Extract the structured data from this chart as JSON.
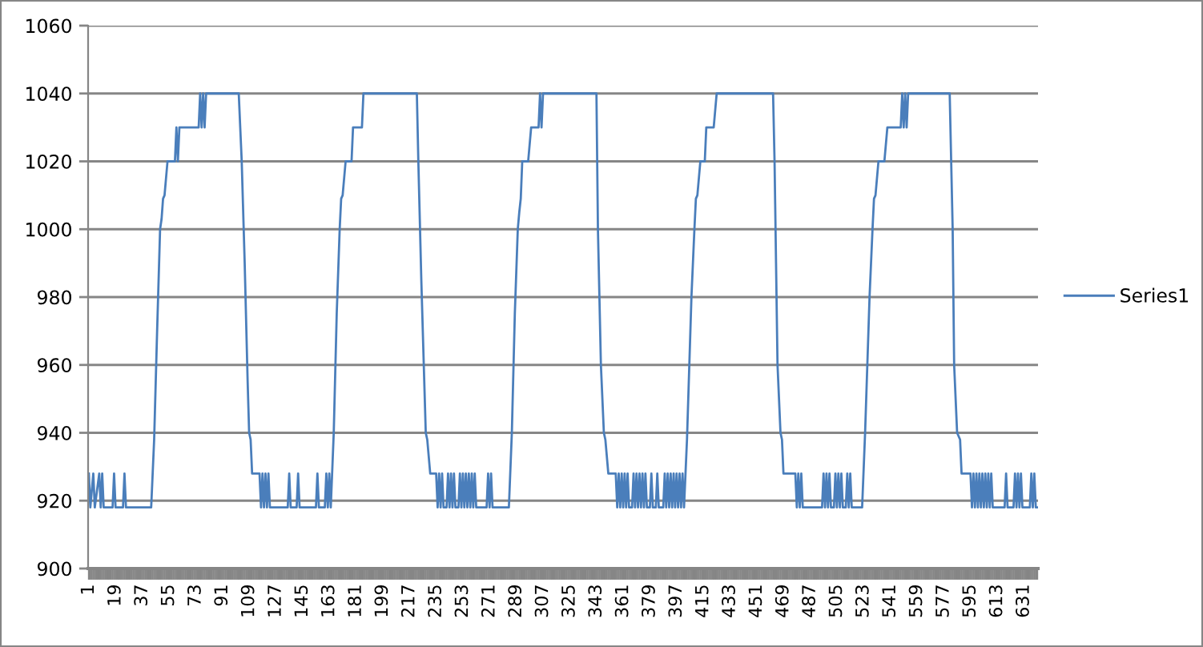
{
  "chart_data": {
    "type": "line",
    "series": [
      {
        "name": "Series1",
        "color": "#4a7ebb",
        "x": [
          1,
          2,
          4,
          5,
          8,
          9,
          10,
          11,
          17,
          18,
          19,
          24,
          25,
          26,
          43,
          45,
          47,
          49,
          50,
          51,
          52,
          54,
          59,
          60,
          61,
          62,
          75,
          76,
          77,
          78,
          79,
          80,
          102,
          104,
          106,
          108,
          109,
          110,
          111,
          116,
          117,
          118,
          119,
          120,
          121,
          122,
          123,
          135,
          136,
          137,
          141,
          142,
          143,
          154,
          155,
          156,
          160,
          161,
          162,
          163,
          164,
          166,
          168,
          170,
          171,
          172,
          174,
          178,
          179,
          185,
          186,
          222,
          223,
          225,
          228,
          229,
          231,
          235,
          236,
          237,
          238,
          239,
          240,
          242,
          243,
          244,
          245,
          246,
          247,
          248,
          250,
          251,
          252,
          253,
          254,
          255,
          256,
          257,
          258,
          259,
          260,
          261,
          262,
          269,
          270,
          271,
          272,
          273,
          284,
          286,
          288,
          290,
          291,
          292,
          293,
          297,
          299,
          304,
          305,
          306,
          307,
          343,
          344,
          346,
          348,
          349,
          351,
          356,
          357,
          358,
          359,
          360,
          361,
          362,
          363,
          364,
          365,
          367,
          368,
          369,
          370,
          371,
          372,
          373,
          374,
          375,
          376,
          377,
          379,
          380,
          381,
          383,
          384,
          385,
          388,
          389,
          390,
          391,
          392,
          393,
          394,
          395,
          396,
          397,
          398,
          399,
          400,
          401,
          402,
          403,
          404,
          407,
          409,
          410,
          411,
          413,
          416,
          417,
          422,
          424,
          462,
          463,
          464,
          465,
          467,
          468,
          469,
          477,
          478,
          479,
          480,
          481,
          482,
          495,
          496,
          497,
          498,
          499,
          500,
          501,
          503,
          504,
          505,
          506,
          507,
          508,
          509,
          511,
          512,
          513,
          514,
          515,
          522,
          524,
          527,
          529,
          530,
          531,
          533,
          537,
          539,
          548,
          549,
          550,
          551,
          552,
          553,
          581,
          582,
          583,
          584,
          586,
          588,
          589,
          595,
          596,
          597,
          598,
          599,
          600,
          601,
          602,
          603,
          604,
          605,
          606,
          607,
          608,
          609,
          610,
          618,
          619,
          620,
          624,
          625,
          626,
          627,
          628,
          629,
          630,
          635,
          636,
          637,
          638,
          639,
          640
        ],
        "values": [
          928,
          918,
          928,
          918,
          928,
          918,
          928,
          918,
          918,
          928,
          918,
          918,
          928,
          918,
          918,
          938,
          970,
          1000,
          1003,
          1009,
          1010,
          1020,
          1020,
          1030,
          1020,
          1030,
          1030,
          1040,
          1030,
          1040,
          1030,
          1040,
          1040,
          1020,
          990,
          955,
          940,
          938,
          928,
          928,
          918,
          928,
          918,
          928,
          918,
          928,
          918,
          918,
          928,
          918,
          918,
          928,
          918,
          918,
          928,
          918,
          918,
          928,
          918,
          928,
          918,
          940,
          975,
          1000,
          1009,
          1010,
          1020,
          1020,
          1030,
          1030,
          1040,
          1040,
          1020,
          985,
          940,
          938,
          928,
          928,
          918,
          928,
          918,
          928,
          918,
          918,
          928,
          918,
          928,
          918,
          928,
          918,
          918,
          928,
          918,
          928,
          918,
          928,
          918,
          928,
          918,
          928,
          918,
          928,
          918,
          918,
          928,
          918,
          928,
          918,
          918,
          940,
          975,
          1000,
          1005,
          1009,
          1020,
          1020,
          1030,
          1030,
          1040,
          1030,
          1040,
          1040,
          1000,
          960,
          940,
          938,
          928,
          928,
          918,
          928,
          918,
          928,
          918,
          928,
          918,
          928,
          918,
          918,
          928,
          918,
          928,
          918,
          928,
          918,
          928,
          918,
          928,
          918,
          918,
          928,
          918,
          918,
          928,
          918,
          918,
          928,
          918,
          928,
          918,
          928,
          918,
          928,
          918,
          928,
          918,
          928,
          918,
          928,
          918,
          928,
          938,
          980,
          1000,
          1009,
          1010,
          1020,
          1020,
          1030,
          1030,
          1040,
          1040,
          1020,
          990,
          960,
          940,
          938,
          928,
          928,
          918,
          928,
          918,
          928,
          918,
          918,
          928,
          918,
          928,
          918,
          928,
          918,
          918,
          928,
          918,
          928,
          918,
          928,
          918,
          918,
          928,
          918,
          928,
          918,
          918,
          940,
          980,
          1000,
          1009,
          1010,
          1020,
          1020,
          1030,
          1030,
          1040,
          1030,
          1040,
          1030,
          1040,
          1040,
          1020,
          1000,
          960,
          940,
          938,
          928,
          928,
          918,
          928,
          918,
          928,
          918,
          928,
          918,
          928,
          918,
          928,
          918,
          928,
          918,
          928,
          918,
          918,
          928,
          918,
          918,
          928,
          918,
          928,
          918,
          928,
          918,
          918,
          928,
          918,
          928,
          918,
          918
        ]
      }
    ],
    "xlim": [
      0.5,
      640.5
    ],
    "xticks": [
      1,
      19,
      37,
      55,
      73,
      91,
      109,
      127,
      145,
      163,
      181,
      199,
      217,
      235,
      253,
      271,
      289,
      307,
      325,
      343,
      361,
      379,
      397,
      415,
      433,
      451,
      469,
      487,
      505,
      523,
      541,
      559,
      577,
      595,
      613,
      631
    ],
    "ylim": [
      900,
      1060
    ],
    "yticks": [
      900,
      920,
      940,
      960,
      980,
      1000,
      1020,
      1040,
      1060
    ],
    "grid": "y",
    "legend": "right"
  }
}
